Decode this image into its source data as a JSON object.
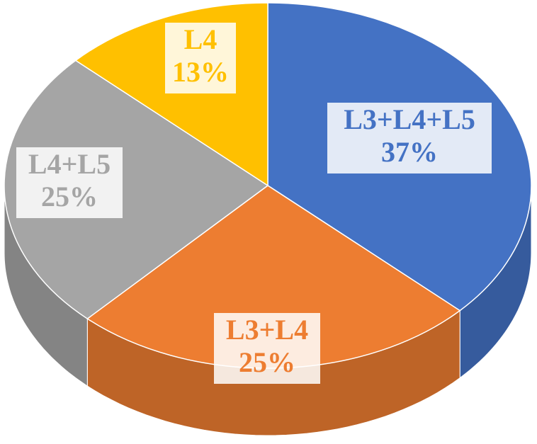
{
  "chart_data": {
    "type": "pie",
    "categories": [
      "L3+L4+L5",
      "L3+L4",
      "L4+L5",
      "L4"
    ],
    "values": [
      37,
      25,
      25,
      13
    ],
    "value_labels": [
      "37%",
      "25%",
      "25%",
      "13%"
    ],
    "colors": [
      "#4472c4",
      "#ed7d31",
      "#a5a5a5",
      "#ffc000"
    ]
  }
}
